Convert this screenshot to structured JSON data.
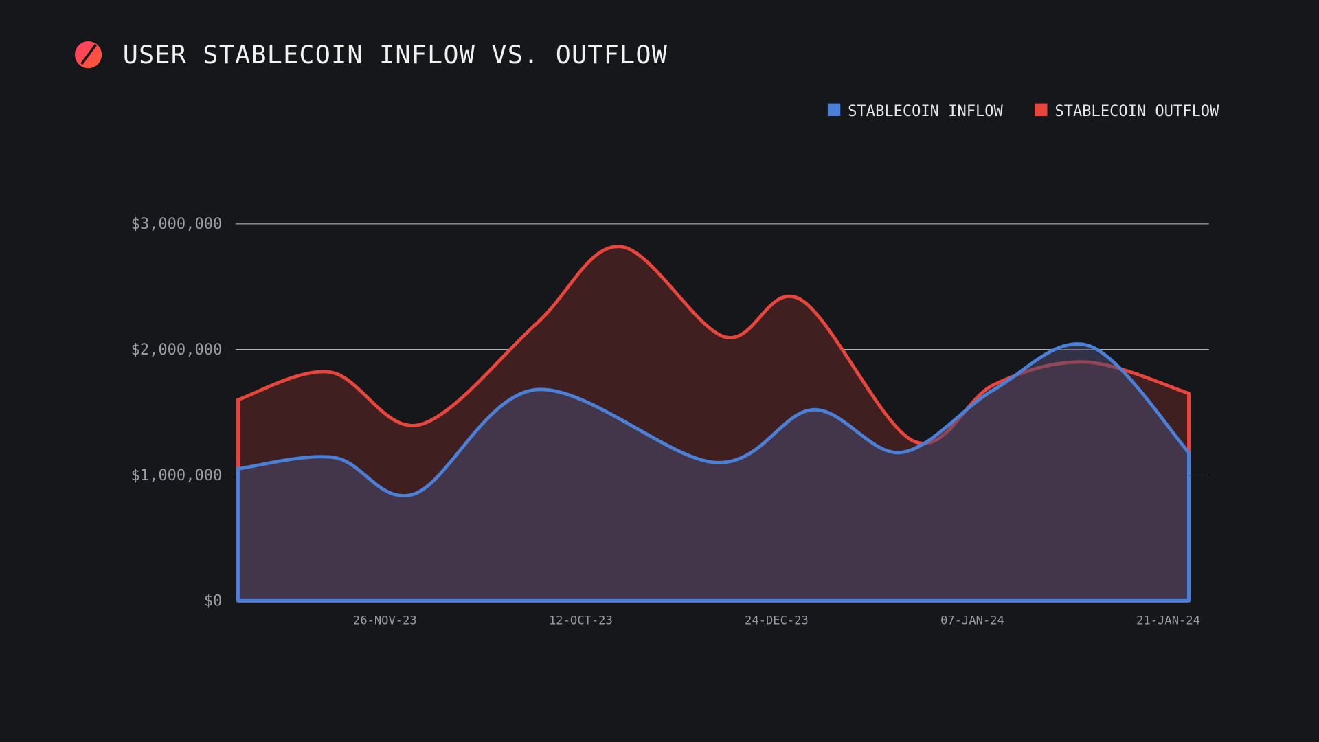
{
  "header": {
    "title": "USER STABLECOIN INFLOW VS. OUTFLOW",
    "logo_icon": "slashed-circle-logo"
  },
  "chart_data": {
    "type": "area",
    "title": "USER STABLECOIN INFLOW VS. OUTFLOW",
    "xlabel": "",
    "ylabel": "",
    "ylim": [
      0,
      3000000
    ],
    "xlim": [
      0,
      9.71
    ],
    "y_ticks": [
      {
        "v": 0,
        "label": "$0"
      },
      {
        "v": 1000000,
        "label": "$1,000,000"
      },
      {
        "v": 2000000,
        "label": "$2,000,000"
      },
      {
        "v": 3000000,
        "label": "$3,000,000"
      }
    ],
    "x_ticks": [
      {
        "v": 1.5,
        "label": "26-NOV-23"
      },
      {
        "v": 3.5,
        "label": "12-OCT-23"
      },
      {
        "v": 5.5,
        "label": "24-DEC-23"
      },
      {
        "v": 7.5,
        "label": "07-JAN-24"
      },
      {
        "v": 9.5,
        "label": "21-JAN-24"
      }
    ],
    "grid": true,
    "legend_position": "top-right",
    "series": [
      {
        "name": "STABLECOIN OUTFLOW",
        "color": "#e8453c",
        "fill": "#3f1f20",
        "x": [
          0,
          0.94,
          1.85,
          3.04,
          3.9,
          4.97,
          5.74,
          6.9,
          7.72,
          8.66,
          9.71
        ],
        "values": [
          1600000,
          1820000,
          1400000,
          2200000,
          2820000,
          2100000,
          2400000,
          1270000,
          1720000,
          1900000,
          1650000
        ]
      },
      {
        "name": "STABLECOIN INFLOW",
        "color": "#4a80d8",
        "fill": "rgba(72,72,110,0.55)",
        "x": [
          0,
          0.98,
          1.8,
          3.04,
          4.87,
          5.87,
          6.77,
          7.72,
          8.69,
          9.71
        ],
        "values": [
          1050000,
          1140000,
          850000,
          1680000,
          1100000,
          1520000,
          1180000,
          1680000,
          2030000,
          1180000
        ]
      }
    ]
  }
}
